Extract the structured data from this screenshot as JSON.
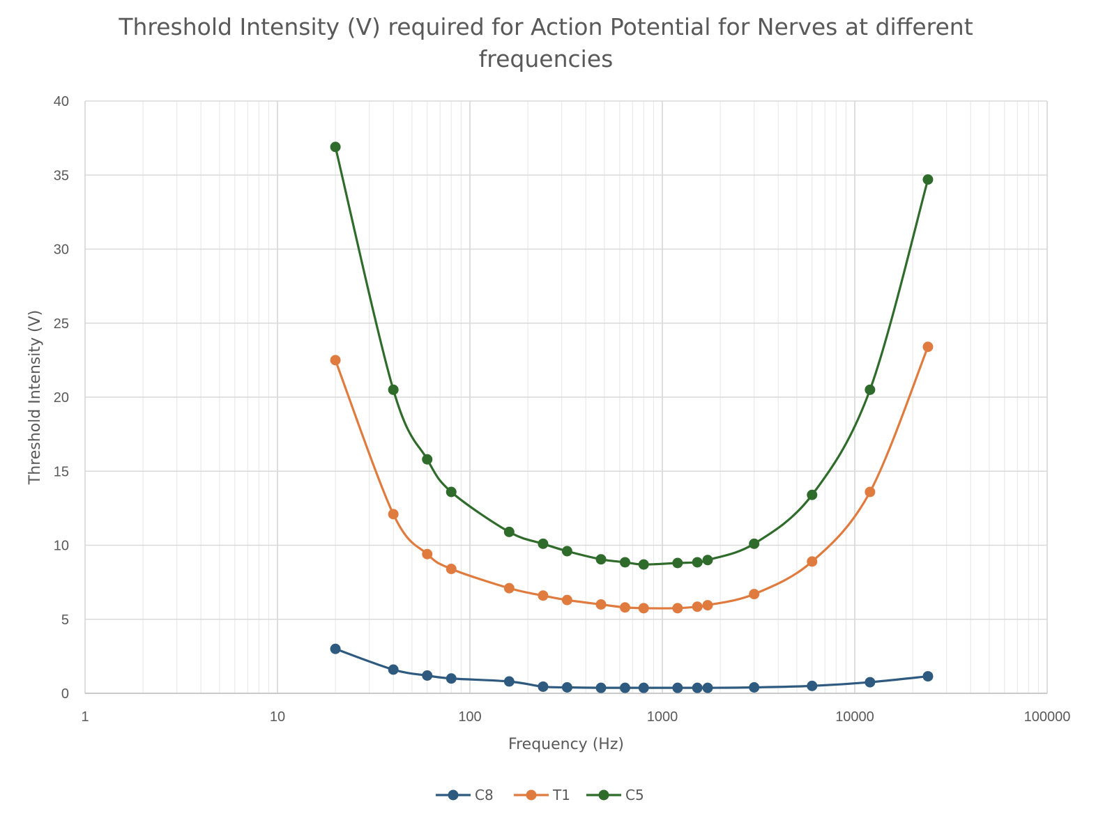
{
  "chart_data": {
    "type": "scatter",
    "title": "Threshold Intensity (V) required for Action Potential for Nerves at different frequencies",
    "title_lines": [
      "Threshold Intensity (V) required for Action Potential for Nerves at different",
      "frequencies"
    ],
    "xlabel": "Frequency (Hz)",
    "ylabel": "Threshold Intensity (V)",
    "x_scale": "log",
    "xlim": [
      1,
      100000
    ],
    "ylim": [
      0,
      40
    ],
    "x_ticks": [
      "1",
      "10",
      "100",
      "1000",
      "10000",
      "100000"
    ],
    "y_ticks": [
      "0",
      "5",
      "10",
      "15",
      "20",
      "25",
      "30",
      "35",
      "40"
    ],
    "grid": true,
    "smooth_lines": true,
    "legend_position": "bottom",
    "x": [
      20,
      40,
      60,
      80,
      160,
      240,
      320,
      480,
      640,
      800,
      1200,
      1520,
      1720,
      3000,
      6000,
      12000,
      24000
    ],
    "series": [
      {
        "name": "C8",
        "color": "#2e5a7f",
        "values": [
          3.0,
          1.6,
          1.2,
          1.0,
          0.8,
          0.45,
          0.4,
          0.37,
          0.37,
          0.37,
          0.37,
          0.37,
          0.37,
          0.4,
          0.5,
          0.75,
          1.15
        ]
      },
      {
        "name": "T1",
        "color": "#e07b3f",
        "values": [
          22.5,
          12.1,
          9.4,
          8.4,
          7.1,
          6.6,
          6.3,
          6.0,
          5.8,
          5.75,
          5.75,
          5.85,
          5.95,
          6.7,
          8.9,
          13.6,
          23.4
        ]
      },
      {
        "name": "C5",
        "color": "#2f6b2a",
        "values": [
          36.9,
          20.5,
          15.8,
          13.6,
          10.9,
          10.1,
          9.6,
          9.05,
          8.85,
          8.7,
          8.8,
          8.85,
          9.0,
          10.1,
          13.4,
          20.5,
          34.7
        ]
      }
    ]
  }
}
